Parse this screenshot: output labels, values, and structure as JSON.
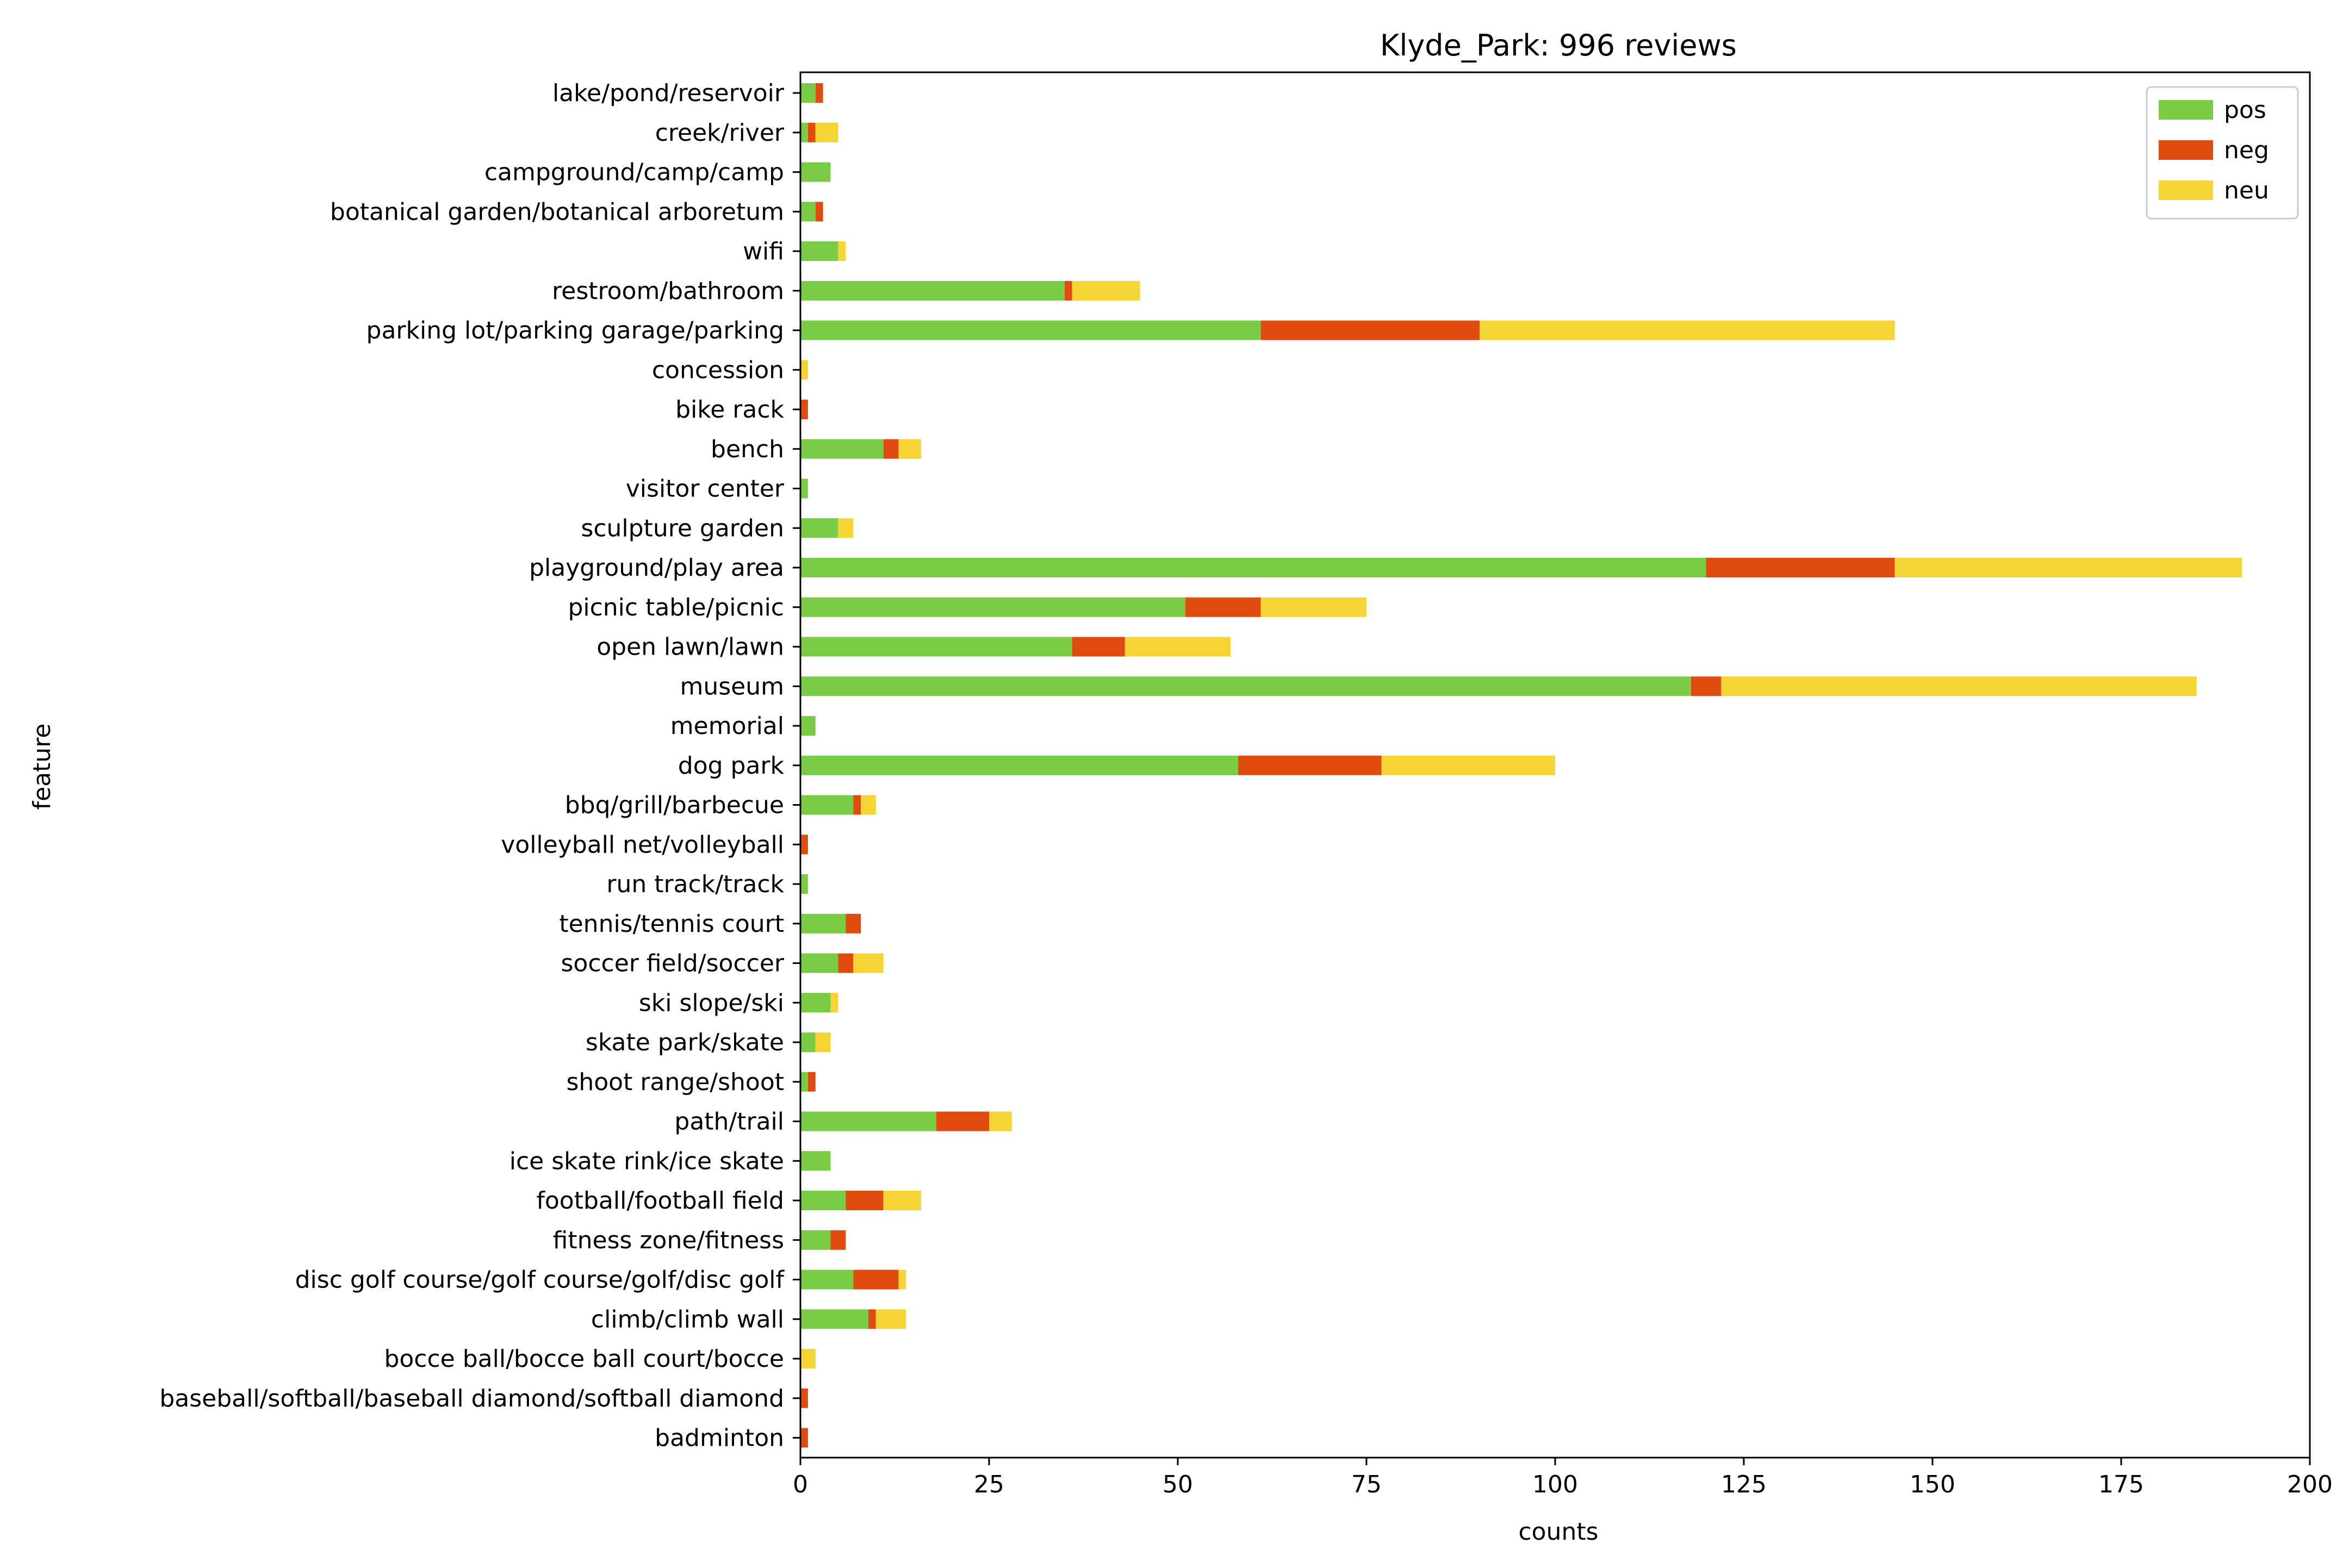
{
  "chart_data": {
    "type": "bar",
    "orientation": "horizontal",
    "stacked": true,
    "title": "Klyde_Park: 996 reviews",
    "xlabel": "counts",
    "ylabel": "feature",
    "xlim": [
      0,
      200
    ],
    "xticks": [
      0,
      25,
      50,
      75,
      100,
      125,
      150,
      175,
      200
    ],
    "grid": false,
    "legend_position": "top-right",
    "categories": [
      "lake/pond/reservoir",
      "creek/river",
      "campground/camp/camp",
      "botanical garden/botanical arboretum",
      "wifi",
      "restroom/bathroom",
      "parking lot/parking garage/parking",
      "concession",
      "bike rack",
      "bench",
      "visitor center",
      "sculpture garden",
      "playground/play area",
      "picnic table/picnic",
      "open lawn/lawn",
      "museum",
      "memorial",
      "dog park",
      "bbq/grill/barbecue",
      "volleyball net/volleyball",
      "run track/track",
      "tennis/tennis court",
      "soccer field/soccer",
      "ski slope/ski",
      "skate park/skate",
      "shoot range/shoot",
      "path/trail",
      "ice skate rink/ice skate",
      "football/football field",
      "fitness zone/fitness",
      "disc golf course/golf course/golf/disc golf",
      "climb/climb wall",
      "bocce ball/bocce ball court/bocce",
      "baseball/softball/baseball diamond/softball diamond",
      "badminton"
    ],
    "series": [
      {
        "name": "pos",
        "color": "#7acc47",
        "values": [
          2,
          1,
          4,
          2,
          5,
          35,
          61,
          0,
          0,
          11,
          1,
          5,
          120,
          51,
          36,
          118,
          2,
          58,
          7,
          0,
          1,
          6,
          5,
          4,
          2,
          1,
          18,
          4,
          6,
          4,
          7,
          9,
          0,
          0,
          0
        ]
      },
      {
        "name": "neg",
        "color": "#e04c10",
        "values": [
          1,
          1,
          0,
          1,
          0,
          1,
          29,
          0,
          1,
          2,
          0,
          0,
          25,
          10,
          7,
          4,
          0,
          19,
          1,
          1,
          0,
          2,
          2,
          0,
          0,
          1,
          7,
          0,
          5,
          2,
          6,
          1,
          0,
          1,
          1
        ]
      },
      {
        "name": "neu",
        "color": "#f5d535",
        "values": [
          0,
          3,
          0,
          0,
          1,
          9,
          55,
          1,
          0,
          3,
          0,
          2,
          46,
          14,
          14,
          63,
          0,
          23,
          2,
          0,
          0,
          0,
          4,
          1,
          2,
          0,
          3,
          0,
          5,
          0,
          1,
          4,
          2,
          0,
          0
        ]
      }
    ]
  }
}
